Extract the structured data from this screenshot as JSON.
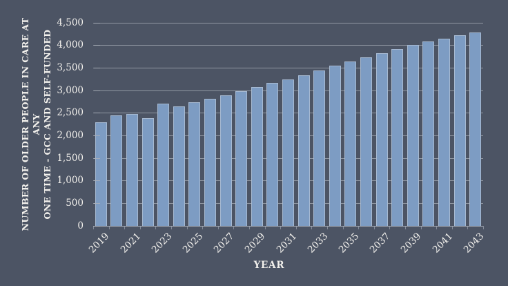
{
  "chart_data": {
    "type": "bar",
    "title": "",
    "xlabel": "YEAR",
    "ylabel_line1": "NUMBER OF OLDER PEOPLE IN CARE AT ANY",
    "ylabel_line2": "ONE TIME - GCC AND SELF-FUNDED",
    "categories": [
      2019,
      2020,
      2021,
      2022,
      2023,
      2024,
      2025,
      2026,
      2027,
      2028,
      2029,
      2030,
      2031,
      2032,
      2033,
      2034,
      2035,
      2036,
      2037,
      2038,
      2039,
      2040,
      2041,
      2042,
      2043
    ],
    "values": [
      2290,
      2445,
      2485,
      2385,
      2705,
      2655,
      2735,
      2815,
      2890,
      2980,
      3080,
      3165,
      3250,
      3340,
      3445,
      3545,
      3640,
      3730,
      3830,
      3920,
      4005,
      4080,
      4155,
      4220,
      4285
    ],
    "ylim": [
      0,
      4500
    ],
    "ytick_step": 500,
    "ytick_labels": [
      "0",
      "500",
      "1,000",
      "1,500",
      "2,000",
      "2,500",
      "3,000",
      "3,500",
      "4,000",
      "4,500"
    ],
    "xtick_labels": [
      "2019",
      "2021",
      "2023",
      "2025",
      "2027",
      "2029",
      "2031",
      "2033",
      "2035",
      "2037",
      "2039",
      "2041",
      "2043"
    ],
    "xtick_every": 2,
    "grid": true,
    "legend": "none",
    "colors": {
      "background": "#4c5464",
      "bar_fill": "#7d9cc3",
      "bar_border": "#a7bad2",
      "gridline": "#aab0ba",
      "text": "#f2f0ec"
    }
  }
}
